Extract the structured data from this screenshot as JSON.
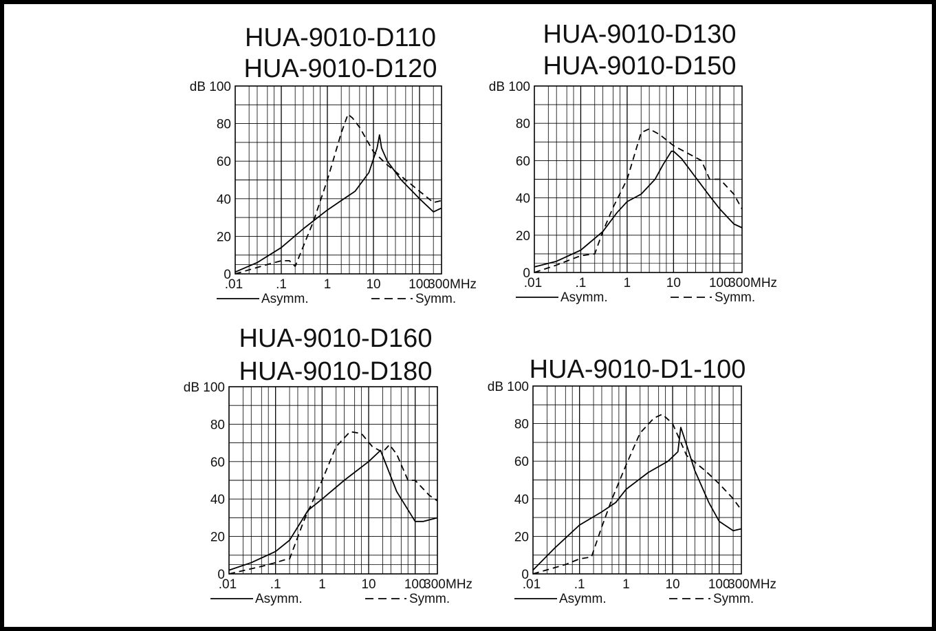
{
  "chart_data": [
    {
      "type": "line",
      "title": [
        "HUA-9010-D110",
        "HUA-9010-D120"
      ],
      "xscale": "log",
      "xlim": [
        0.01,
        300
      ],
      "ylim": [
        0,
        100
      ],
      "xticks": [
        ".01",
        ".1",
        "1",
        "10",
        "100",
        "300"
      ],
      "yticks": [
        "0",
        "20",
        "40",
        "60",
        "80",
        "dB 100"
      ],
      "xunit": "MHz",
      "grid": true,
      "legend": "bottom",
      "series": [
        {
          "name": "Asymm.",
          "style": "solid",
          "x": [
            0.01,
            0.03,
            0.1,
            0.3,
            1,
            2,
            4,
            8,
            12,
            13.5,
            15,
            20,
            40,
            100,
            200,
            300
          ],
          "y": [
            1,
            6,
            14,
            24,
            34,
            39,
            44,
            54,
            67,
            74,
            67,
            60,
            50,
            40,
            33,
            35
          ]
        },
        {
          "name": "Symm.",
          "style": "dashed",
          "x": [
            0.01,
            0.05,
            0.1,
            0.15,
            0.2,
            0.5,
            1,
            2,
            2.8,
            3.5,
            5,
            10,
            20,
            50,
            100,
            200,
            300
          ],
          "y": [
            0,
            5,
            7,
            7,
            4,
            28,
            50,
            75,
            85,
            83,
            78,
            65,
            58,
            50,
            44,
            38,
            39
          ]
        }
      ]
    },
    {
      "type": "line",
      "title": [
        "HUA-9010-D130",
        "HUA-9010-D150"
      ],
      "xscale": "log",
      "xlim": [
        0.01,
        300
      ],
      "ylim": [
        0,
        100
      ],
      "xticks": [
        ".01",
        ".1",
        "1",
        "10",
        "100",
        "300"
      ],
      "yticks": [
        "0",
        "20",
        "40",
        "60",
        "80",
        "dB 100"
      ],
      "xunit": "MHz",
      "grid": true,
      "legend": "bottom",
      "series": [
        {
          "name": "Asymm.",
          "style": "solid",
          "x": [
            0.01,
            0.03,
            0.1,
            0.3,
            0.6,
            1,
            2,
            4,
            6,
            9,
            10,
            15,
            30,
            60,
            100,
            200,
            300
          ],
          "y": [
            3,
            6,
            12,
            22,
            32,
            38,
            42,
            50,
            58,
            65,
            65,
            61,
            51,
            41,
            34,
            26,
            24
          ]
        },
        {
          "name": "Symm.",
          "style": "dashed",
          "x": [
            0.01,
            0.03,
            0.1,
            0.2,
            0.3,
            0.5,
            1,
            2,
            3,
            5,
            10,
            20,
            40,
            60,
            100,
            200,
            300
          ],
          "y": [
            0,
            4,
            9,
            10,
            22,
            35,
            50,
            75,
            77,
            74,
            68,
            64,
            60,
            50,
            50,
            42,
            34
          ]
        }
      ]
    },
    {
      "type": "line",
      "title": [
        "HUA-9010-D160",
        "HUA-9010-D180"
      ],
      "xscale": "log",
      "xlim": [
        0.01,
        300
      ],
      "ylim": [
        0,
        100
      ],
      "xticks": [
        ".01",
        ".1",
        "1",
        "10",
        "100",
        "300"
      ],
      "yticks": [
        "0",
        "20",
        "40",
        "60",
        "80",
        "dB 100"
      ],
      "xunit": "MHz",
      "grid": true,
      "legend": "bottom",
      "series": [
        {
          "name": "Asymm.",
          "style": "solid",
          "x": [
            0.01,
            0.03,
            0.1,
            0.2,
            0.5,
            1,
            3,
            10,
            18,
            40,
            100,
            150,
            300
          ],
          "y": [
            2,
            6,
            12,
            18,
            34,
            40,
            50,
            60,
            66,
            44,
            28,
            28,
            30
          ]
        },
        {
          "name": "Symm.",
          "style": "dashed",
          "x": [
            0.01,
            0.05,
            0.1,
            0.18,
            0.2,
            0.4,
            1,
            2,
            4,
            7,
            12,
            20,
            28,
            40,
            70,
            100,
            200,
            300
          ],
          "y": [
            0,
            4,
            6,
            8,
            8,
            28,
            50,
            68,
            76,
            75,
            68,
            65,
            69,
            64,
            50,
            50,
            42,
            39
          ]
        }
      ]
    },
    {
      "type": "line",
      "title": [
        "HUA-9010-D1-100"
      ],
      "xscale": "log",
      "xlim": [
        0.01,
        300
      ],
      "ylim": [
        0,
        100
      ],
      "xticks": [
        ".01",
        ".1",
        "1",
        "10",
        "100",
        "300"
      ],
      "yticks": [
        "0",
        "20",
        "40",
        "60",
        "80",
        "dB 100"
      ],
      "xunit": "MHz",
      "grid": true,
      "legend": "bottom",
      "series": [
        {
          "name": "Asymm.",
          "style": "solid",
          "x": [
            0.01,
            0.03,
            0.1,
            0.3,
            0.6,
            1,
            3,
            8,
            13,
            15,
            17,
            30,
            60,
            100,
            200,
            300
          ],
          "y": [
            2,
            14,
            26,
            33,
            38,
            45,
            54,
            60,
            65,
            78,
            74,
            55,
            38,
            28,
            23,
            24
          ]
        },
        {
          "name": "Symm.",
          "style": "dashed",
          "x": [
            0.01,
            0.05,
            0.1,
            0.18,
            0.3,
            0.5,
            1,
            2,
            4,
            6,
            10,
            20,
            50,
            100,
            200,
            300
          ],
          "y": [
            0,
            5,
            8,
            9,
            25,
            40,
            58,
            75,
            83,
            85,
            80,
            63,
            55,
            48,
            40,
            34
          ]
        }
      ]
    }
  ]
}
